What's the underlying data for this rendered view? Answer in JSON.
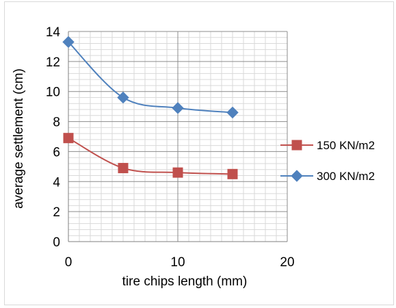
{
  "chart_data": {
    "type": "line",
    "title": "",
    "xlabel": "tire chips length (mm)",
    "ylabel": "average settlement (cm)",
    "xlim": [
      0,
      20
    ],
    "ylim": [
      0,
      14
    ],
    "x_major_ticks": [
      0,
      10,
      20
    ],
    "y_major_ticks": [
      0,
      2,
      4,
      6,
      8,
      10,
      12,
      14
    ],
    "grid": true,
    "smoothed": true,
    "legend_position": "right",
    "series": [
      {
        "name": "150 KN/m2",
        "color": "#c0504d",
        "marker": "square",
        "x": [
          0,
          5,
          10,
          15
        ],
        "y": [
          6.9,
          4.9,
          4.6,
          4.5
        ]
      },
      {
        "name": "300 KN/m2",
        "color": "#4f81bd",
        "marker": "diamond",
        "x": [
          0,
          5,
          10,
          15
        ],
        "y": [
          13.3,
          9.6,
          8.9,
          8.6
        ]
      }
    ]
  }
}
